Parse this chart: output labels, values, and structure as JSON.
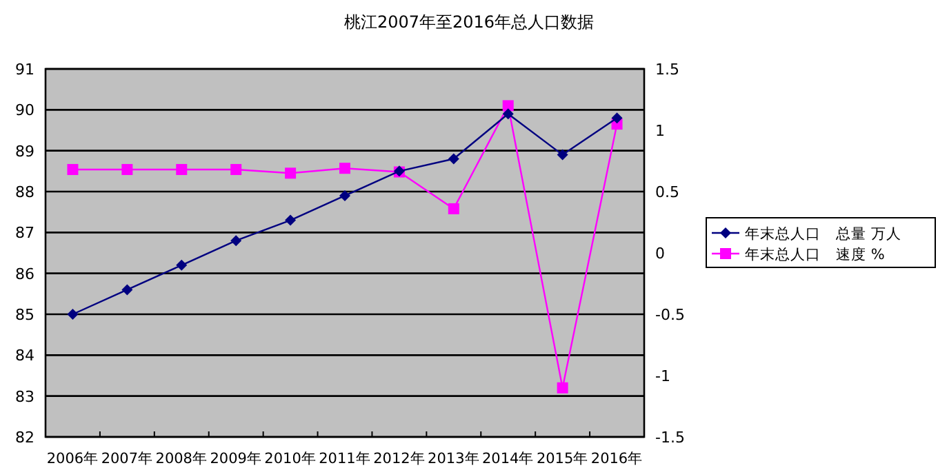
{
  "chart_data": {
    "type": "line",
    "title": "桃江2007年至2016年总人口数据",
    "categories": [
      "2006年",
      "2007年",
      "2008年",
      "2009年",
      "2010年",
      "2011年",
      "2012年",
      "2013年",
      "2014年",
      "2015年",
      "2016年"
    ],
    "series": [
      {
        "name": "年末总人口　总量 万人",
        "color": "#000080",
        "marker": "diamond",
        "values": [
          85.0,
          85.6,
          86.2,
          86.8,
          87.3,
          87.9,
          88.5,
          88.8,
          89.9,
          88.9,
          89.8
        ]
      },
      {
        "name": "年末总人口　速度 %",
        "color": "#ff00ff",
        "marker": "square",
        "axis": "y2",
        "values": [
          0.68,
          0.68,
          0.68,
          0.68,
          0.65,
          0.69,
          0.66,
          0.36,
          1.2,
          -1.1,
          1.05
        ]
      }
    ],
    "ylim": [
      82,
      91
    ],
    "yticks": [
      82,
      83,
      84,
      85,
      86,
      87,
      88,
      89,
      90,
      91
    ],
    "y2lim": [
      -1.5,
      1.5
    ],
    "y2ticks": [
      -1.5,
      -1,
      -0.5,
      0,
      0.5,
      1,
      1.5
    ],
    "grid": "y",
    "legend": "right",
    "line_style": "solid"
  }
}
